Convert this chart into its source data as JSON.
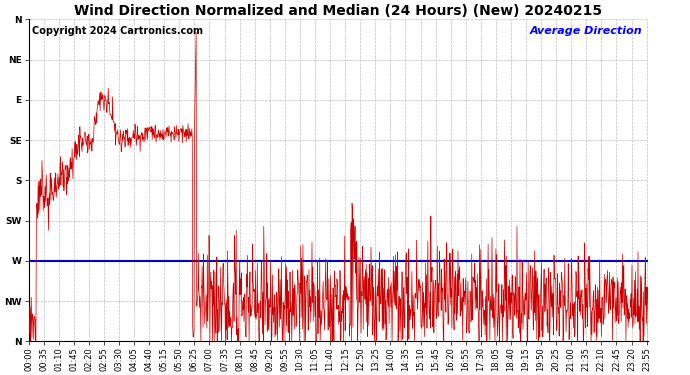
{
  "title": "Wind Direction Normalized and Median (24 Hours) (New) 20240215",
  "copyright": "Copyright 2024 Cartronics.com",
  "legend_label": "Average Direction",
  "legend_color": "#0000ff",
  "line_color": "#cc0000",
  "avg_line_color": "#0000cc",
  "background_color": "#ffffff",
  "grid_color": "#aaaaaa",
  "ytick_labels": [
    "N",
    "NW",
    "W",
    "SW",
    "S",
    "SE",
    "E",
    "NE",
    "N"
  ],
  "ytick_values": [
    360,
    315,
    270,
    225,
    180,
    135,
    90,
    45,
    0
  ],
  "avg_direction_value": 270,
  "ylim": [
    0,
    360
  ],
  "title_fontsize": 10,
  "copyright_fontsize": 7,
  "tick_fontsize": 6.5,
  "legend_fontsize": 8
}
